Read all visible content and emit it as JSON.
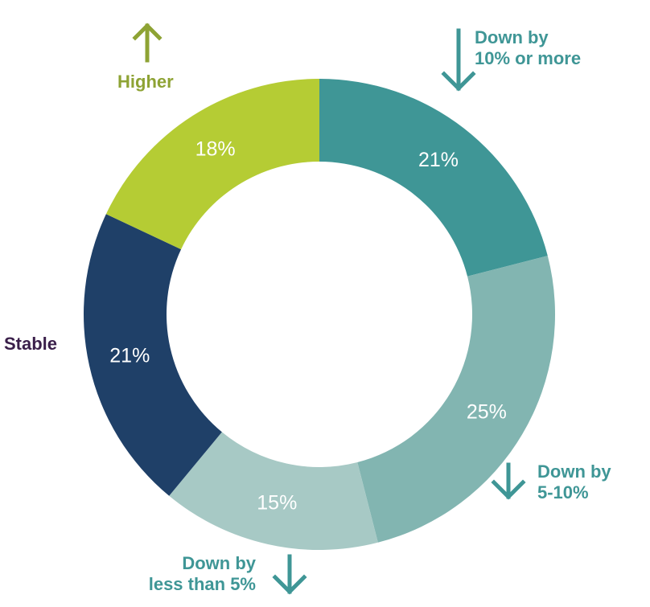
{
  "chart_data": {
    "type": "pie",
    "categories": [
      "Down by\n10% or more",
      "Down by\n5-10%",
      "Down by\nless than 5%",
      "Stable",
      "Higher"
    ],
    "values": [
      21,
      25,
      15,
      21,
      18
    ],
    "value_labels": [
      "21%",
      "25%",
      "15%",
      "21%",
      "18%"
    ],
    "colors": [
      "#3f9696",
      "#82b5b1",
      "#a7c9c5",
      "#1f4068",
      "#b5cc34"
    ],
    "label_colors": [
      "#3f9696",
      "#3f9696",
      "#3f9696",
      "#3a1f4a",
      "#8ea334"
    ],
    "donut": true
  }
}
